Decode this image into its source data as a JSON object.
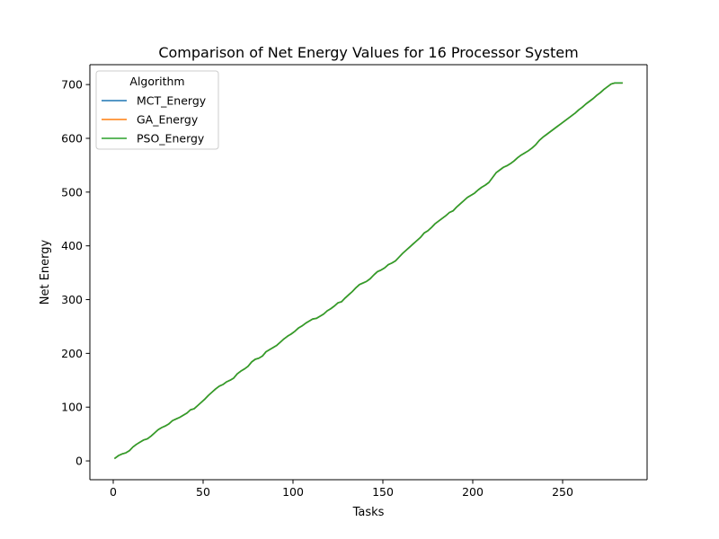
{
  "chart_data": {
    "type": "line",
    "title": "Comparison of Net Energy Values for 16 Processor System",
    "xlabel": "Tasks",
    "ylabel": "Net Energy",
    "xlim": [
      -13,
      297
    ],
    "ylim": [
      -35,
      737
    ],
    "xticks": [
      0,
      50,
      100,
      150,
      200,
      250
    ],
    "yticks": [
      0,
      100,
      200,
      300,
      400,
      500,
      600,
      700
    ],
    "grid": false,
    "legend": {
      "title": "Algorithm",
      "placement": "top-left"
    },
    "x": [
      1,
      3,
      5,
      7,
      9,
      11,
      13,
      15,
      17,
      19,
      21,
      23,
      25,
      27,
      29,
      31,
      33,
      35,
      37,
      39,
      41,
      43,
      45,
      47,
      49,
      51,
      53,
      55,
      57,
      59,
      61,
      63,
      65,
      67,
      69,
      71,
      73,
      75,
      77,
      79,
      81,
      83,
      85,
      87,
      89,
      91,
      93,
      95,
      97,
      99,
      101,
      103,
      105,
      107,
      109,
      111,
      113,
      115,
      117,
      119,
      121,
      123,
      125,
      127,
      129,
      131,
      133,
      135,
      137,
      139,
      141,
      143,
      145,
      147,
      149,
      151,
      153,
      155,
      157,
      159,
      161,
      163,
      165,
      167,
      169,
      171,
      173,
      175,
      177,
      179,
      181,
      183,
      185,
      187,
      189,
      191,
      193,
      195,
      197,
      199,
      201,
      203,
      205,
      207,
      209,
      211,
      213,
      215,
      217,
      219,
      221,
      223,
      225,
      227,
      229,
      231,
      233,
      235,
      237,
      239,
      241,
      243,
      245,
      247,
      249,
      251,
      253,
      255,
      257,
      259,
      261,
      263,
      265,
      267,
      269,
      271,
      273,
      275,
      277,
      279,
      281,
      283
    ],
    "series": [
      {
        "name": "MCT_Energy",
        "color": "#1f77b4",
        "values": [
          5,
          10,
          13,
          15,
          19,
          26,
          31,
          35,
          39,
          41,
          46,
          52,
          58,
          62,
          65,
          69,
          75,
          78,
          81,
          85,
          89,
          95,
          97,
          103,
          109,
          115,
          122,
          128,
          134,
          139,
          142,
          147,
          150,
          154,
          162,
          167,
          171,
          176,
          184,
          189,
          191,
          195,
          203,
          207,
          211,
          215,
          221,
          227,
          232,
          236,
          241,
          247,
          251,
          256,
          260,
          264,
          265,
          269,
          273,
          279,
          283,
          288,
          294,
          296,
          303,
          309,
          315,
          322,
          328,
          331,
          334,
          339,
          346,
          352,
          355,
          359,
          365,
          368,
          372,
          379,
          386,
          392,
          398,
          404,
          410,
          416,
          424,
          428,
          434,
          441,
          446,
          451,
          456,
          462,
          465,
          472,
          478,
          484,
          490,
          494,
          498,
          504,
          509,
          513,
          518,
          527,
          536,
          541,
          546,
          549,
          553,
          558,
          564,
          569,
          573,
          577,
          582,
          588,
          596,
          602,
          607,
          612,
          617,
          622,
          627,
          632,
          637,
          642,
          647,
          653,
          658,
          664,
          669,
          674,
          680,
          685,
          691,
          696,
          701,
          703,
          703,
          703
        ]
      },
      {
        "name": "GA_Energy",
        "color": "#ff7f0e",
        "values": [
          5,
          10,
          13,
          15,
          19,
          26,
          31,
          35,
          39,
          41,
          46,
          52,
          58,
          62,
          65,
          69,
          75,
          78,
          81,
          85,
          89,
          95,
          97,
          103,
          109,
          115,
          122,
          128,
          134,
          139,
          142,
          147,
          150,
          154,
          162,
          167,
          171,
          176,
          184,
          189,
          191,
          195,
          203,
          207,
          211,
          215,
          221,
          227,
          232,
          236,
          241,
          247,
          251,
          256,
          260,
          264,
          265,
          269,
          273,
          279,
          283,
          288,
          294,
          296,
          303,
          309,
          315,
          322,
          328,
          331,
          334,
          339,
          346,
          352,
          355,
          359,
          365,
          368,
          372,
          379,
          386,
          392,
          398,
          404,
          410,
          416,
          424,
          428,
          434,
          441,
          446,
          451,
          456,
          462,
          465,
          472,
          478,
          484,
          490,
          494,
          498,
          504,
          509,
          513,
          518,
          527,
          536,
          541,
          546,
          549,
          553,
          558,
          564,
          569,
          573,
          577,
          582,
          588,
          596,
          602,
          607,
          612,
          617,
          622,
          627,
          632,
          637,
          642,
          647,
          653,
          658,
          664,
          669,
          674,
          680,
          685,
          691,
          696,
          701,
          703,
          703,
          703
        ]
      },
      {
        "name": "PSO_Energy",
        "color": "#2ca02c",
        "values": [
          5,
          10,
          13,
          15,
          19,
          26,
          31,
          35,
          39,
          41,
          46,
          52,
          58,
          62,
          65,
          69,
          75,
          78,
          81,
          85,
          89,
          95,
          97,
          103,
          109,
          115,
          122,
          128,
          134,
          139,
          142,
          147,
          150,
          154,
          162,
          167,
          171,
          176,
          184,
          189,
          191,
          195,
          203,
          207,
          211,
          215,
          221,
          227,
          232,
          236,
          241,
          247,
          251,
          256,
          260,
          264,
          265,
          269,
          273,
          279,
          283,
          288,
          294,
          296,
          303,
          309,
          315,
          322,
          328,
          331,
          334,
          339,
          346,
          352,
          355,
          359,
          365,
          368,
          372,
          379,
          386,
          392,
          398,
          404,
          410,
          416,
          424,
          428,
          434,
          441,
          446,
          451,
          456,
          462,
          465,
          472,
          478,
          484,
          490,
          494,
          498,
          504,
          509,
          513,
          518,
          527,
          536,
          541,
          546,
          549,
          553,
          558,
          564,
          569,
          573,
          577,
          582,
          588,
          596,
          602,
          607,
          612,
          617,
          622,
          627,
          632,
          637,
          642,
          647,
          653,
          658,
          664,
          669,
          674,
          680,
          685,
          691,
          696,
          701,
          703,
          703,
          703
        ]
      }
    ]
  }
}
